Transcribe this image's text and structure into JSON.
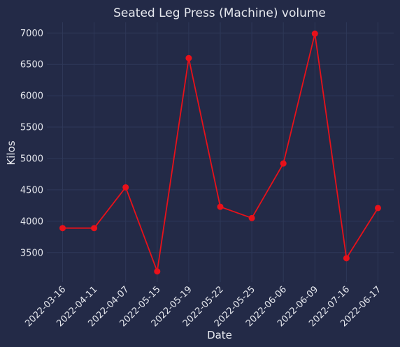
{
  "colors": {
    "background": "#232a47",
    "grid": "#2e3858",
    "text": "#e6e8ee",
    "series": "#e8111a"
  },
  "chart_data": {
    "type": "line",
    "title": "Seated Leg Press (Machine) volume",
    "xlabel": "Date",
    "ylabel": "Kilos",
    "categories": [
      "2022-03-16",
      "2022-04-11",
      "2022-04-07",
      "2022-05-15",
      "2022-05-19",
      "2022-05-22",
      "2022-05-25",
      "2022-06-06",
      "2022-06-09",
      "2022-07-16",
      "2022-06-17"
    ],
    "series": [
      {
        "values": [
          3890,
          3890,
          4540,
          3200,
          6600,
          4230,
          4050,
          4920,
          6990,
          3410,
          4210
        ]
      }
    ],
    "yticks": [
      3500,
      4000,
      4500,
      5000,
      5500,
      6000,
      6500,
      7000
    ],
    "ylim": [
      3030,
      7170
    ],
    "grid": true,
    "marker": "circle",
    "legend": "none"
  }
}
